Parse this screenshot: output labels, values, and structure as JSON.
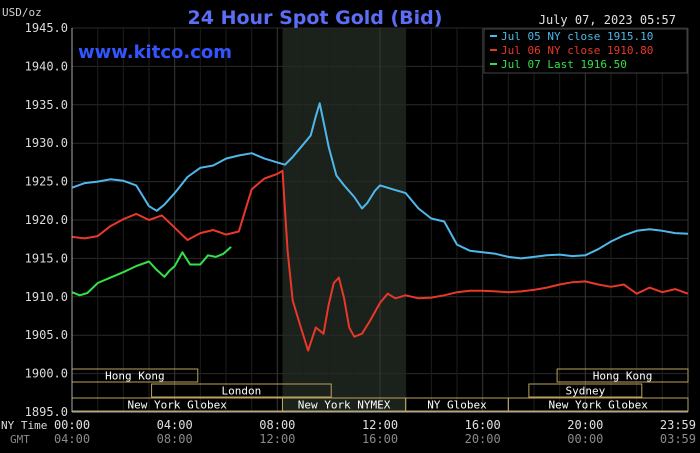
{
  "chart_data": {
    "type": "line",
    "title": "24 Hour Spot Gold (Bid)",
    "watermark": "www.kitco.com",
    "date_label": "July 07, 2023 05:57",
    "unit_label": "USD/oz",
    "ylim": [
      1895,
      1945
    ],
    "y_ticks": [
      "1945.0",
      "1940.0",
      "1935.0",
      "1930.0",
      "1925.0",
      "1920.0",
      "1915.0",
      "1910.0",
      "1905.0",
      "1900.0",
      "1895.0"
    ],
    "x_range": [
      0,
      24
    ],
    "x_tick_labels": [
      {
        "hour": 0,
        "ny": "00:00",
        "gmt": "04:00"
      },
      {
        "hour": 4,
        "ny": "04:00",
        "gmt": "08:00"
      },
      {
        "hour": 8,
        "ny": "08:00",
        "gmt": "12:00"
      },
      {
        "hour": 12,
        "ny": "12:00",
        "gmt": "16:00"
      },
      {
        "hour": 16,
        "ny": "16:00",
        "gmt": "20:00"
      },
      {
        "hour": 20,
        "ny": "20:00",
        "gmt": "00:00"
      },
      {
        "hour": 24,
        "ny": "23:59",
        "gmt": "03:59"
      }
    ],
    "x_axis_labels": {
      "ny": "NY Time",
      "gmt": "GMT"
    },
    "highlight": {
      "start": 8.2,
      "end": 13.0
    },
    "grid": true,
    "legend_position": "top-right",
    "colors": {
      "background": "#000000",
      "grid": "#2a2a2a",
      "axis": "#aaaaaa",
      "title": "#5b6ef5",
      "watermark": "#3355ff",
      "session_box": "#b8a45c",
      "session_text": "#ffffff",
      "highlight": "#1b211b"
    },
    "sessions": [
      {
        "label": "Hong Kong",
        "start": 0,
        "end": 4.9,
        "row": 0
      },
      {
        "label": "London",
        "start": 3.1,
        "end": 10.1,
        "row": 1
      },
      {
        "label": "New York Globex",
        "start": 0,
        "end": 8.2,
        "row": 2
      },
      {
        "label": "New York NYMEX",
        "start": 8.2,
        "end": 13.0,
        "row": 2
      },
      {
        "label": "NY Globex",
        "start": 13.0,
        "end": 17.0,
        "row": 2
      },
      {
        "label": "Hong Kong",
        "start": 18.9,
        "end": 24,
        "row": 0
      },
      {
        "label": "Sydney",
        "start": 17.8,
        "end": 22.2,
        "row": 1
      },
      {
        "label": "New York Globex",
        "start": 17.0,
        "end": 24,
        "row": 2
      }
    ],
    "series": [
      {
        "name": "Jul 05 NY close 1915.10",
        "color": "#4fb8ea",
        "points": [
          [
            0,
            1924.2
          ],
          [
            0.5,
            1924.8
          ],
          [
            1,
            1925.0
          ],
          [
            1.5,
            1925.3
          ],
          [
            2,
            1925.1
          ],
          [
            2.5,
            1924.5
          ],
          [
            3,
            1921.8
          ],
          [
            3.3,
            1921.2
          ],
          [
            3.6,
            1922.0
          ],
          [
            4,
            1923.5
          ],
          [
            4.5,
            1925.6
          ],
          [
            5,
            1926.8
          ],
          [
            5.5,
            1927.1
          ],
          [
            6,
            1928.0
          ],
          [
            6.5,
            1928.4
          ],
          [
            7,
            1928.7
          ],
          [
            7.5,
            1928.0
          ],
          [
            8,
            1927.5
          ],
          [
            8.3,
            1927.2
          ],
          [
            8.6,
            1928.2
          ],
          [
            9,
            1929.8
          ],
          [
            9.3,
            1931.0
          ],
          [
            9.5,
            1933.5
          ],
          [
            9.65,
            1935.2
          ],
          [
            9.85,
            1932.0
          ],
          [
            10,
            1929.5
          ],
          [
            10.3,
            1925.8
          ],
          [
            10.6,
            1924.5
          ],
          [
            11,
            1923.0
          ],
          [
            11.3,
            1921.5
          ],
          [
            11.5,
            1922.2
          ],
          [
            11.8,
            1923.8
          ],
          [
            12,
            1924.5
          ],
          [
            12.5,
            1924.0
          ],
          [
            13,
            1923.5
          ],
          [
            13.5,
            1921.5
          ],
          [
            14,
            1920.2
          ],
          [
            14.5,
            1919.8
          ],
          [
            15,
            1916.8
          ],
          [
            15.5,
            1916.0
          ],
          [
            16,
            1915.8
          ],
          [
            16.5,
            1915.6
          ],
          [
            17,
            1915.2
          ],
          [
            17.5,
            1915.0
          ],
          [
            18,
            1915.2
          ],
          [
            18.5,
            1915.4
          ],
          [
            19,
            1915.5
          ],
          [
            19.5,
            1915.3
          ],
          [
            20,
            1915.4
          ],
          [
            20.5,
            1916.2
          ],
          [
            21,
            1917.2
          ],
          [
            21.5,
            1918.0
          ],
          [
            22,
            1918.6
          ],
          [
            22.5,
            1918.8
          ],
          [
            23,
            1918.6
          ],
          [
            23.5,
            1918.3
          ],
          [
            24,
            1918.2
          ]
        ]
      },
      {
        "name": "Jul 06 NY close 1910.80",
        "color": "#e8382a",
        "points": [
          [
            0,
            1917.8
          ],
          [
            0.5,
            1917.6
          ],
          [
            1,
            1917.9
          ],
          [
            1.5,
            1919.2
          ],
          [
            2,
            1920.1
          ],
          [
            2.5,
            1920.8
          ],
          [
            3,
            1920.0
          ],
          [
            3.5,
            1920.6
          ],
          [
            4,
            1919.0
          ],
          [
            4.5,
            1917.4
          ],
          [
            5,
            1918.3
          ],
          [
            5.5,
            1918.7
          ],
          [
            6,
            1918.1
          ],
          [
            6.5,
            1918.5
          ],
          [
            7,
            1924.0
          ],
          [
            7.5,
            1925.4
          ],
          [
            8,
            1926.0
          ],
          [
            8.2,
            1926.4
          ],
          [
            8.4,
            1916.0
          ],
          [
            8.6,
            1909.5
          ],
          [
            8.9,
            1906.2
          ],
          [
            9.2,
            1903.0
          ],
          [
            9.5,
            1906.0
          ],
          [
            9.8,
            1905.2
          ],
          [
            10,
            1909.0
          ],
          [
            10.2,
            1911.8
          ],
          [
            10.4,
            1912.5
          ],
          [
            10.6,
            1909.8
          ],
          [
            10.8,
            1906.0
          ],
          [
            11,
            1904.8
          ],
          [
            11.3,
            1905.2
          ],
          [
            11.6,
            1906.8
          ],
          [
            12,
            1909.2
          ],
          [
            12.3,
            1910.4
          ],
          [
            12.6,
            1909.8
          ],
          [
            13,
            1910.2
          ],
          [
            13.5,
            1909.8
          ],
          [
            14,
            1909.9
          ],
          [
            14.5,
            1910.2
          ],
          [
            15,
            1910.6
          ],
          [
            15.5,
            1910.8
          ],
          [
            16,
            1910.8
          ],
          [
            16.5,
            1910.7
          ],
          [
            17,
            1910.6
          ],
          [
            17.5,
            1910.7
          ],
          [
            18,
            1910.9
          ],
          [
            18.5,
            1911.2
          ],
          [
            19,
            1911.6
          ],
          [
            19.5,
            1911.9
          ],
          [
            20,
            1912.0
          ],
          [
            20.5,
            1911.6
          ],
          [
            21,
            1911.3
          ],
          [
            21.5,
            1911.6
          ],
          [
            22,
            1910.4
          ],
          [
            22.5,
            1911.2
          ],
          [
            23,
            1910.6
          ],
          [
            23.5,
            1911.0
          ],
          [
            24,
            1910.4
          ]
        ]
      },
      {
        "name": "Jul 07 Last 1916.50",
        "color": "#35e048",
        "points": [
          [
            0,
            1910.6
          ],
          [
            0.3,
            1910.2
          ],
          [
            0.6,
            1910.5
          ],
          [
            1,
            1911.8
          ],
          [
            1.5,
            1912.5
          ],
          [
            2,
            1913.2
          ],
          [
            2.5,
            1914.0
          ],
          [
            3,
            1914.6
          ],
          [
            3.3,
            1913.5
          ],
          [
            3.6,
            1912.6
          ],
          [
            3.8,
            1913.4
          ],
          [
            4,
            1914.0
          ],
          [
            4.3,
            1915.8
          ],
          [
            4.6,
            1914.2
          ],
          [
            5,
            1914.2
          ],
          [
            5.3,
            1915.4
          ],
          [
            5.6,
            1915.2
          ],
          [
            5.9,
            1915.6
          ],
          [
            6.2,
            1916.5
          ]
        ]
      }
    ]
  }
}
